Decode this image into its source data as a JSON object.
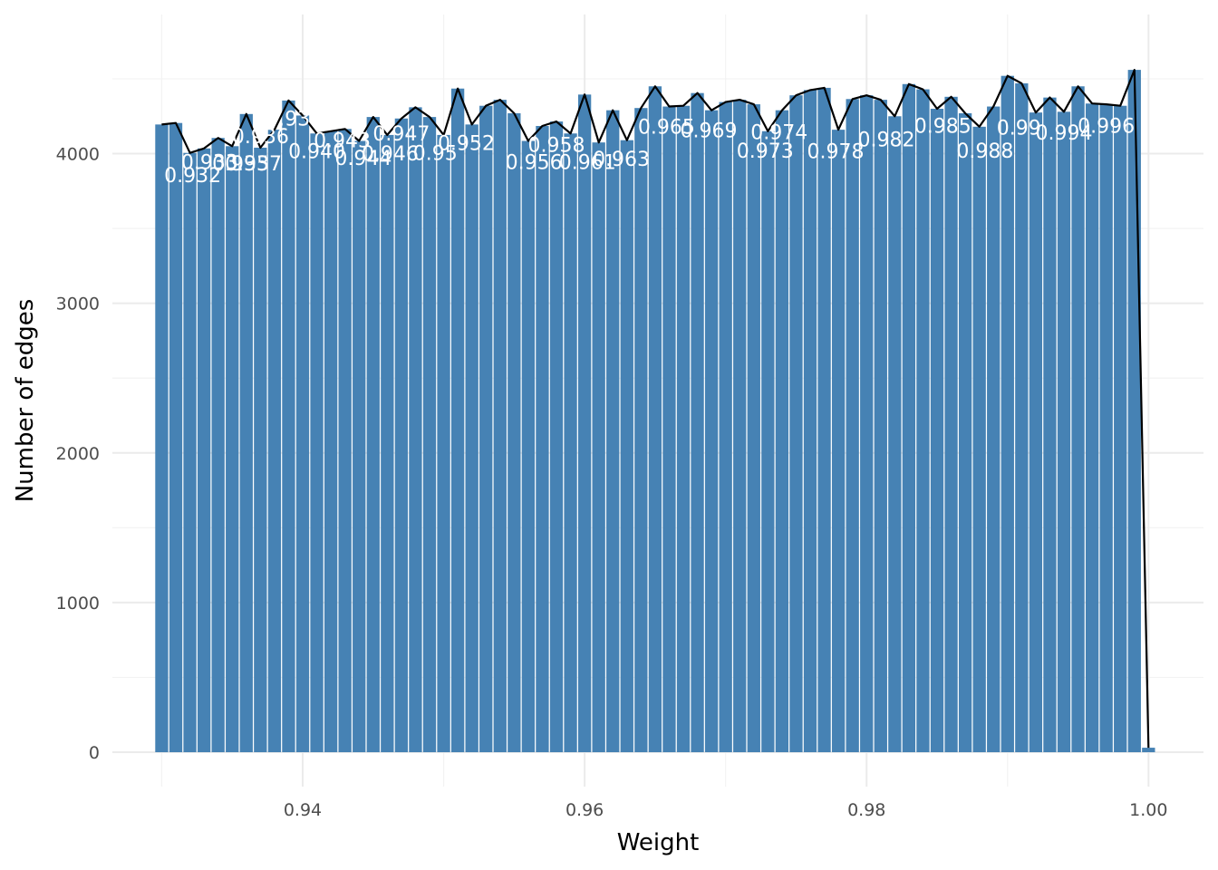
{
  "chart_data": {
    "type": "bar",
    "title": "",
    "xlabel": "Weight",
    "ylabel": "Number of edges",
    "xlim": [
      0.9265,
      1.0039
    ],
    "ylim": [
      -230,
      4930
    ],
    "x_ticks": [
      0.94,
      0.96,
      0.98,
      1.0
    ],
    "x_tick_labels": [
      "0.94",
      "0.96",
      "0.98",
      "1.00"
    ],
    "y_ticks": [
      0,
      1000,
      2000,
      3000,
      4000
    ],
    "y_tick_labels": [
      "0",
      "1000",
      "2000",
      "3000",
      "4000"
    ],
    "grid": true,
    "legend": "none",
    "bar_color": "#4682b4",
    "line_color": "#000000",
    "label_color": "#ffffff",
    "bar_width": 0.00092,
    "x": [
      0.93,
      0.931,
      0.932,
      0.933,
      0.934,
      0.935,
      0.936,
      0.937,
      0.938,
      0.939,
      0.94,
      0.941,
      0.942,
      0.943,
      0.944,
      0.945,
      0.946,
      0.947,
      0.948,
      0.949,
      0.95,
      0.951,
      0.952,
      0.953,
      0.954,
      0.955,
      0.956,
      0.957,
      0.958,
      0.959,
      0.96,
      0.961,
      0.962,
      0.963,
      0.964,
      0.965,
      0.966,
      0.967,
      0.968,
      0.969,
      0.97,
      0.971,
      0.972,
      0.973,
      0.974,
      0.975,
      0.976,
      0.977,
      0.978,
      0.979,
      0.98,
      0.981,
      0.982,
      0.983,
      0.984,
      0.985,
      0.986,
      0.987,
      0.988,
      0.989,
      0.99,
      0.991,
      0.992,
      0.993,
      0.994,
      0.995,
      0.996,
      0.997,
      0.998,
      0.999,
      1.0
    ],
    "values": [
      4195,
      4205,
      4005,
      4035,
      4105,
      4050,
      4265,
      4040,
      4160,
      4355,
      4255,
      4135,
      4150,
      4165,
      4085,
      4245,
      4125,
      4235,
      4310,
      4245,
      4125,
      4435,
      4195,
      4320,
      4360,
      4270,
      4085,
      4185,
      4215,
      4135,
      4395,
      4075,
      4290,
      4090,
      4305,
      4450,
      4315,
      4320,
      4405,
      4290,
      4345,
      4360,
      4330,
      4150,
      4290,
      4390,
      4425,
      4440,
      4160,
      4365,
      4390,
      4360,
      4250,
      4465,
      4430,
      4300,
      4380,
      4270,
      4180,
      4315,
      4520,
      4470,
      4275,
      4375,
      4280,
      4450,
      4335,
      4330,
      4320,
      4560,
      30
    ],
    "point_labels": [
      {
        "text": "0.932",
        "x": 0.9322,
        "y": 3845
      },
      {
        "text": "0.933",
        "x": 0.9334,
        "y": 3935
      },
      {
        "text": "0.935",
        "x": 0.9356,
        "y": 3925
      },
      {
        "text": "0.937",
        "x": 0.9365,
        "y": 3925
      },
      {
        "text": "0.936",
        "x": 0.937,
        "y": 4105
      },
      {
        "text": "0.939",
        "x": 0.9394,
        "y": 4225
      },
      {
        "text": "0.940",
        "x": 0.941,
        "y": 4005
      },
      {
        "text": "0.943",
        "x": 0.9428,
        "y": 4080
      },
      {
        "text": "0.944",
        "x": 0.9443,
        "y": 3960
      },
      {
        "text": "0.946",
        "x": 0.9462,
        "y": 3990
      },
      {
        "text": "0.947",
        "x": 0.947,
        "y": 4125
      },
      {
        "text": "0.95",
        "x": 0.9494,
        "y": 3995
      },
      {
        "text": "0.952",
        "x": 0.9516,
        "y": 4060
      },
      {
        "text": "0.956",
        "x": 0.9564,
        "y": 3935
      },
      {
        "text": "0.958",
        "x": 0.958,
        "y": 4050
      },
      {
        "text": "0.961",
        "x": 0.9602,
        "y": 3935
      },
      {
        "text": "0.963",
        "x": 0.9626,
        "y": 3955
      },
      {
        "text": "0.965",
        "x": 0.9658,
        "y": 4170
      },
      {
        "text": "0.969",
        "x": 0.9688,
        "y": 4145
      },
      {
        "text": "0.973",
        "x": 0.9728,
        "y": 4010
      },
      {
        "text": "0.974",
        "x": 0.9738,
        "y": 4135
      },
      {
        "text": "0.978",
        "x": 0.9778,
        "y": 4005
      },
      {
        "text": "0.982",
        "x": 0.9814,
        "y": 4085
      },
      {
        "text": "0.985",
        "x": 0.9854,
        "y": 4175
      },
      {
        "text": "0.988",
        "x": 0.9884,
        "y": 4010
      },
      {
        "text": "0.99",
        "x": 0.9908,
        "y": 4165
      },
      {
        "text": "0.994",
        "x": 0.994,
        "y": 4130
      },
      {
        "text": "0.996",
        "x": 0.997,
        "y": 4175
      }
    ]
  }
}
